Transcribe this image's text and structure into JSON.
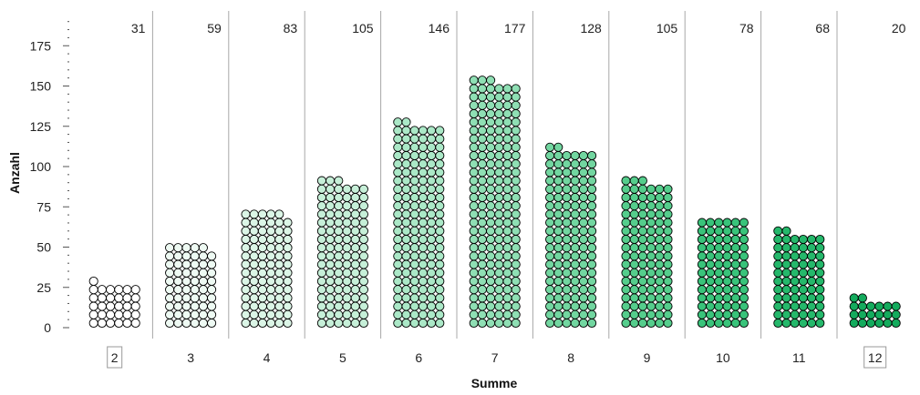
{
  "chart_data": {
    "type": "dotplot",
    "categories": [
      "2",
      "3",
      "4",
      "5",
      "6",
      "7",
      "8",
      "9",
      "10",
      "11",
      "12"
    ],
    "values": [
      31,
      59,
      83,
      105,
      146,
      177,
      128,
      105,
      78,
      68,
      20
    ],
    "xlabel": "Summe",
    "ylabel": "Anzahl",
    "ylim": [
      0,
      185
    ],
    "yticks": [
      0,
      25,
      50,
      75,
      100,
      125,
      150,
      175
    ],
    "highlighted_categories": [
      "2",
      "12"
    ],
    "colors": [
      "#ffffff",
      "#eefaf3",
      "#dbf5e6",
      "#c6efd8",
      "#abe8c7",
      "#8fdfb4",
      "#72d6a0",
      "#55cd8c",
      "#39c37a",
      "#25b86b",
      "#14ab5d"
    ],
    "dot_stroke": "#000000",
    "divider_color": "#a8a8a8"
  }
}
